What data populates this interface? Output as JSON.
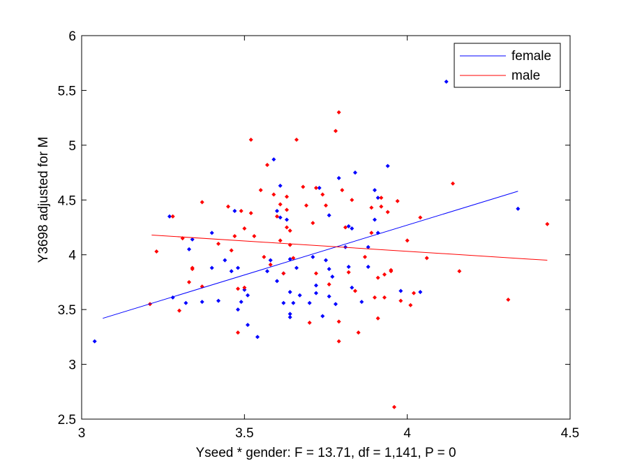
{
  "chart_data": {
    "type": "scatter",
    "title": "",
    "xlabel": "Yseed * gender: F = 13.71, df = 1,141, P = 0",
    "ylabel": "Y3698 adjusted for M",
    "xlim": [
      3,
      4.5
    ],
    "ylim": [
      2.5,
      6
    ],
    "x_ticks": [
      "3",
      "3.5",
      "4",
      "4.5"
    ],
    "y_ticks": [
      "2.5",
      "3",
      "3.5",
      "4",
      "4.5",
      "5",
      "5.5",
      "6"
    ],
    "grid": false,
    "legend_position": "top-right",
    "series": [
      {
        "name": "female",
        "color": "#0000ff",
        "points": [
          [
            3.04,
            3.21
          ],
          [
            3.27,
            4.35
          ],
          [
            3.28,
            3.61
          ],
          [
            3.32,
            3.56
          ],
          [
            3.33,
            4.05
          ],
          [
            3.34,
            4.14
          ],
          [
            3.37,
            3.57
          ],
          [
            3.4,
            4.2
          ],
          [
            3.4,
            3.88
          ],
          [
            3.42,
            3.58
          ],
          [
            3.44,
            3.95
          ],
          [
            3.46,
            3.85
          ],
          [
            3.47,
            4.4
          ],
          [
            3.48,
            3.88
          ],
          [
            3.48,
            3.5
          ],
          [
            3.49,
            3.57
          ],
          [
            3.5,
            3.68
          ],
          [
            3.51,
            3.63
          ],
          [
            3.51,
            3.36
          ],
          [
            3.54,
            3.25
          ],
          [
            3.57,
            3.85
          ],
          [
            3.58,
            3.95
          ],
          [
            3.59,
            4.87
          ],
          [
            3.6,
            3.76
          ],
          [
            3.6,
            4.4
          ],
          [
            3.61,
            4.63
          ],
          [
            3.61,
            4.34
          ],
          [
            3.62,
            3.56
          ],
          [
            3.62,
            3.83
          ],
          [
            3.63,
            4.32
          ],
          [
            3.64,
            3.96
          ],
          [
            3.64,
            3.66
          ],
          [
            3.64,
            3.46
          ],
          [
            3.64,
            3.43
          ],
          [
            3.65,
            3.56
          ],
          [
            3.66,
            3.88
          ],
          [
            3.67,
            3.63
          ],
          [
            3.7,
            3.56
          ],
          [
            3.71,
            3.98
          ],
          [
            3.72,
            3.65
          ],
          [
            3.72,
            3.72
          ],
          [
            3.73,
            4.61
          ],
          [
            3.74,
            3.44
          ],
          [
            3.75,
            3.95
          ],
          [
            3.76,
            3.62
          ],
          [
            3.76,
            3.87
          ],
          [
            3.76,
            4.36
          ],
          [
            3.77,
            3.8
          ],
          [
            3.78,
            3.55
          ],
          [
            3.79,
            4.7
          ],
          [
            3.81,
            4.07
          ],
          [
            3.82,
            3.89
          ],
          [
            3.82,
            4.26
          ],
          [
            3.83,
            3.7
          ],
          [
            3.83,
            4.24
          ],
          [
            3.84,
            4.75
          ],
          [
            3.86,
            3.57
          ],
          [
            3.88,
            3.89
          ],
          [
            3.88,
            4.07
          ],
          [
            3.9,
            4.59
          ],
          [
            3.9,
            4.32
          ],
          [
            3.91,
            4.52
          ],
          [
            3.91,
            4.2
          ],
          [
            3.94,
            4.81
          ],
          [
            3.98,
            3.67
          ],
          [
            4.04,
            3.66
          ],
          [
            4.12,
            5.58
          ],
          [
            4.34,
            4.42
          ]
        ],
        "fit_line": {
          "x": [
            3.065,
            4.34
          ],
          "y": [
            3.42,
            4.58
          ]
        }
      },
      {
        "name": "male",
        "color": "#ff0000",
        "points": [
          [
            3.21,
            3.55
          ],
          [
            3.23,
            4.03
          ],
          [
            3.28,
            4.35
          ],
          [
            3.3,
            3.49
          ],
          [
            3.31,
            4.15
          ],
          [
            3.33,
            3.75
          ],
          [
            3.34,
            3.88
          ],
          [
            3.34,
            3.87
          ],
          [
            3.37,
            4.48
          ],
          [
            3.37,
            3.71
          ],
          [
            3.42,
            4.1
          ],
          [
            3.45,
            4.44
          ],
          [
            3.46,
            4.04
          ],
          [
            3.47,
            4.17
          ],
          [
            3.48,
            3.69
          ],
          [
            3.48,
            3.29
          ],
          [
            3.49,
            4.4
          ],
          [
            3.5,
            4.24
          ],
          [
            3.5,
            3.7
          ],
          [
            3.52,
            5.05
          ],
          [
            3.52,
            4.38
          ],
          [
            3.53,
            4.17
          ],
          [
            3.55,
            4.59
          ],
          [
            3.56,
            3.98
          ],
          [
            3.57,
            4.82
          ],
          [
            3.58,
            3.91
          ],
          [
            3.59,
            4.55
          ],
          [
            3.6,
            4.35
          ],
          [
            3.61,
            4.13
          ],
          [
            3.61,
            4.46
          ],
          [
            3.62,
            3.83
          ],
          [
            3.63,
            4.25
          ],
          [
            3.63,
            4.53
          ],
          [
            3.63,
            4.41
          ],
          [
            3.64,
            4.09
          ],
          [
            3.64,
            4.22
          ],
          [
            3.65,
            3.97
          ],
          [
            3.66,
            5.05
          ],
          [
            3.68,
            4.62
          ],
          [
            3.69,
            4.45
          ],
          [
            3.7,
            3.38
          ],
          [
            3.71,
            4.29
          ],
          [
            3.72,
            4.61
          ],
          [
            3.72,
            3.83
          ],
          [
            3.74,
            4.55
          ],
          [
            3.75,
            4.45
          ],
          [
            3.76,
            3.73
          ],
          [
            3.78,
            5.13
          ],
          [
            3.79,
            5.3
          ],
          [
            3.79,
            3.21
          ],
          [
            3.79,
            3.39
          ],
          [
            3.8,
            4.59
          ],
          [
            3.81,
            4.25
          ],
          [
            3.82,
            3.84
          ],
          [
            3.83,
            4.5
          ],
          [
            3.84,
            3.67
          ],
          [
            3.85,
            3.29
          ],
          [
            3.87,
            3.98
          ],
          [
            3.89,
            4.2
          ],
          [
            3.89,
            4.43
          ],
          [
            3.9,
            3.61
          ],
          [
            3.91,
            3.42
          ],
          [
            3.91,
            3.79
          ],
          [
            3.92,
            4.44
          ],
          [
            3.92,
            4.52
          ],
          [
            3.93,
            3.61
          ],
          [
            3.93,
            3.82
          ],
          [
            3.94,
            4.39
          ],
          [
            3.95,
            3.86
          ],
          [
            3.95,
            3.85
          ],
          [
            3.96,
            2.61
          ],
          [
            3.97,
            4.49
          ],
          [
            3.98,
            3.58
          ],
          [
            4.0,
            4.13
          ],
          [
            4.01,
            3.54
          ],
          [
            4.02,
            3.65
          ],
          [
            4.04,
            4.34
          ],
          [
            4.06,
            3.97
          ],
          [
            4.14,
            4.65
          ],
          [
            4.16,
            3.85
          ],
          [
            4.31,
            3.59
          ],
          [
            4.43,
            4.28
          ]
        ],
        "fit_line": {
          "x": [
            3.215,
            4.43
          ],
          "y": [
            4.18,
            3.95
          ]
        }
      }
    ]
  }
}
